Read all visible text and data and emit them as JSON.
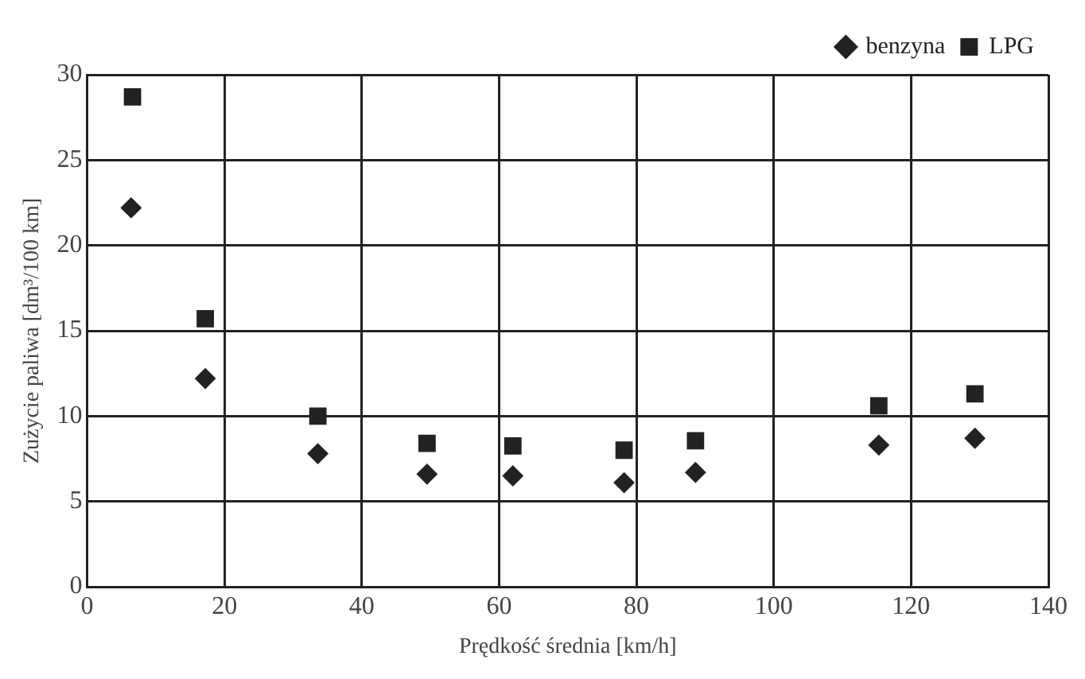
{
  "chart_data": {
    "type": "scatter",
    "xlabel": "Prędkość średnia [km/h]",
    "ylabel": "Zużycie paliwa [dm³/100 km]",
    "xlim": [
      0,
      140
    ],
    "xticks": [
      0,
      20,
      40,
      60,
      80,
      100,
      120,
      140
    ],
    "ylim": [
      0,
      30
    ],
    "yticks": [
      0,
      5,
      10,
      15,
      20,
      25,
      30
    ],
    "grid": true,
    "legend": "top right",
    "series": [
      {
        "name": "benzyna",
        "color": "#222222",
        "marker": "diamond",
        "x": [
          6.4,
          17.2,
          33.6,
          49.5,
          62.0,
          78.2,
          88.6,
          115.3,
          129.3
        ],
        "values": [
          22.2,
          12.2,
          7.8,
          6.6,
          6.5,
          6.1,
          6.7,
          8.3,
          8.7
        ]
      },
      {
        "name": "LPG",
        "color": "#222222",
        "marker": "square",
        "x": [
          6.6,
          17.2,
          33.6,
          49.5,
          62.0,
          78.2,
          88.6,
          115.3,
          129.3
        ],
        "values": [
          28.7,
          15.7,
          10.0,
          8.4,
          8.25,
          8.0,
          8.55,
          10.6,
          11.3
        ]
      }
    ]
  }
}
